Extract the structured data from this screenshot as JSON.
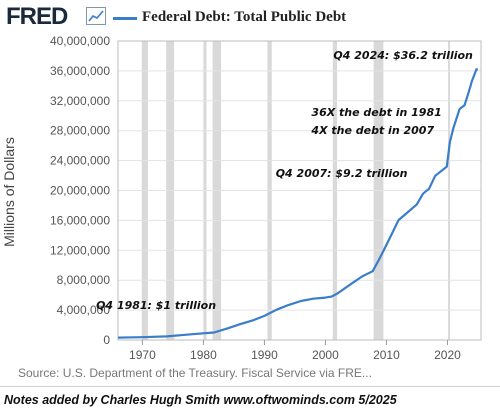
{
  "header": {
    "logo_text": "FRED",
    "badge_icon": "line-chart-icon",
    "title": "Federal Debt: Total Public Debt"
  },
  "colors": {
    "series": "#3a7dc9",
    "recession": "#d9d9d9",
    "grid": "#e3e3e3"
  },
  "chart_data": {
    "type": "line",
    "title": "Federal Debt: Total Public Debt",
    "ylabel": "Millions of Dollars",
    "xlabel": "",
    "xlim": [
      1966,
      2025.5
    ],
    "ylim": [
      0,
      40000000
    ],
    "y_ticks": [
      0,
      4000000,
      8000000,
      12000000,
      16000000,
      20000000,
      24000000,
      28000000,
      32000000,
      36000000,
      40000000
    ],
    "y_tick_labels": [
      "0",
      "4,000,000",
      "8,000,000",
      "12,000,000",
      "16,000,000",
      "20,000,000",
      "24,000,000",
      "28,000,000",
      "32,000,000",
      "36,000,000",
      "40,000,000"
    ],
    "x_ticks": [
      1970,
      1980,
      1990,
      2000,
      2010,
      2020
    ],
    "x_tick_labels": [
      "1970",
      "1980",
      "1990",
      "2000",
      "2010",
      "2020"
    ],
    "grid": true,
    "legend": "top-left",
    "recessions": [
      [
        1969.9,
        1970.9
      ],
      [
        1973.9,
        1975.2
      ],
      [
        1980.0,
        1980.5
      ],
      [
        1981.5,
        1982.9
      ],
      [
        1990.5,
        1991.2
      ],
      [
        2001.2,
        2001.9
      ],
      [
        2007.9,
        2009.5
      ],
      [
        2020.1,
        2020.4
      ]
    ],
    "series": [
      {
        "x": [
          1966,
          1970,
          1974,
          1977,
          1980,
          1981.75,
          1984,
          1986,
          1988,
          1990,
          1992,
          1994,
          1996,
          1998,
          2000,
          2001,
          2002,
          2004,
          2006,
          2007.75,
          2008.75,
          2009.5,
          2010.5,
          2012,
          2013,
          2015,
          2016,
          2017,
          2018,
          2019.9,
          2020.4,
          2021,
          2022,
          2022.8,
          2023.5,
          2024,
          2024.75,
          2025
        ],
        "y": [
          320000,
          380000,
          480000,
          700000,
          900000,
          1000000,
          1570000,
          2120000,
          2600000,
          3230000,
          4060000,
          4690000,
          5220000,
          5530000,
          5670000,
          5800000,
          6230000,
          7380000,
          8500000,
          9200000,
          10700000,
          11900000,
          13560000,
          16060000,
          16740000,
          18150000,
          19570000,
          20240000,
          21970000,
          23200000,
          26500000,
          28400000,
          30900000,
          31400000,
          33200000,
          34600000,
          36200000,
          36200000
        ]
      }
    ],
    "annotations": [
      {
        "text": "Q4 1981: $1 trillion",
        "x": 1981.75,
        "y": 1000000
      },
      {
        "text": "Q4 2007: $9.2 trillion",
        "x": 2007.75,
        "y": 9200000
      },
      {
        "text": "Q4 2024: $36.2 trillion",
        "x": 2024.75,
        "y": 36200000
      },
      {
        "text": "36X the debt in 1981",
        "x": 2024.75,
        "y": 33000000
      },
      {
        "text": "4X the debt in 2007",
        "x": 2024.75,
        "y": 33000000
      }
    ]
  },
  "source_note": "Source: U.S. Department of the Treasury. Fiscal Service via FRE...",
  "footer_note": "Notes added by Charles Hugh Smith  www.oftwominds.com  5/2025"
}
